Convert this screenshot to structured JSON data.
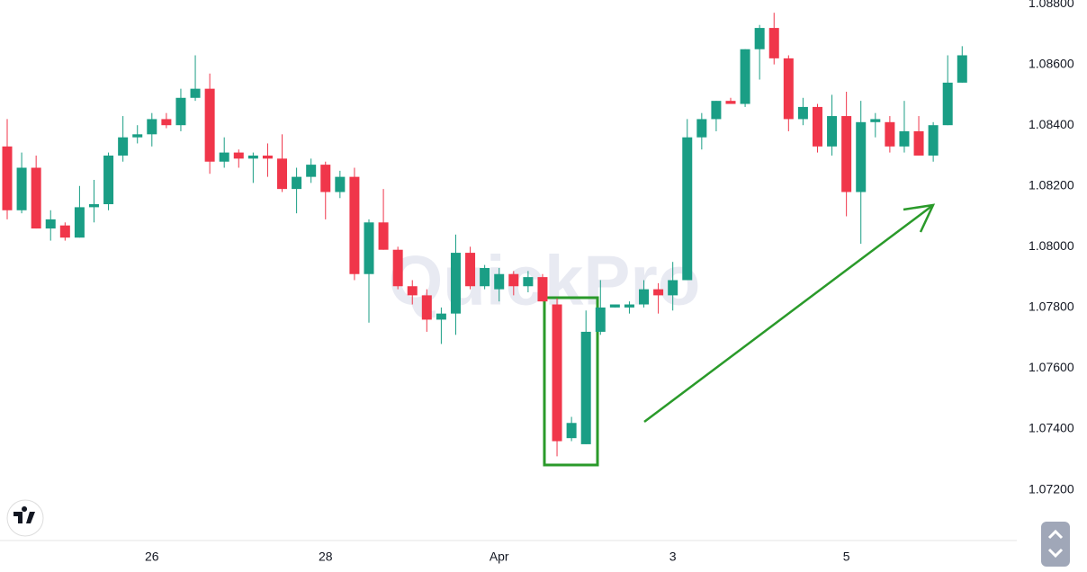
{
  "chart_data": {
    "type": "candlestick",
    "watermark": "QuickPro",
    "up_color": "#1a9e85",
    "down_color": "#f0364a",
    "categories": [
      null,
      null,
      null,
      null,
      null,
      null,
      null,
      null,
      null,
      null,
      "26",
      null,
      null,
      null,
      null,
      null,
      null,
      null,
      null,
      null,
      null,
      null,
      "28",
      null,
      null,
      null,
      null,
      null,
      null,
      null,
      null,
      null,
      null,
      null,
      "Apr",
      null,
      null,
      null,
      null,
      null,
      null,
      null,
      null,
      null,
      null,
      null,
      "3",
      null,
      null,
      null,
      null,
      null,
      null,
      null,
      null,
      null,
      null,
      null,
      "5",
      null,
      null,
      null,
      null,
      null,
      null,
      null,
      null
    ],
    "open": [
      1.0833,
      1.0812,
      1.0826,
      1.0806,
      1.0807,
      1.0803,
      1.0813,
      1.0814,
      1.083,
      1.0836,
      1.0837,
      1.0842,
      1.084,
      1.0849,
      1.0852,
      1.0828,
      1.0831,
      1.0829,
      1.083,
      1.0829,
      1.0819,
      1.0823,
      1.0827,
      1.0818,
      1.0823,
      1.0791,
      1.0808,
      1.0799,
      1.0787,
      1.0784,
      1.0776,
      1.0778,
      1.0798,
      1.0787,
      1.0786,
      1.0791,
      1.0787,
      1.079,
      1.0781,
      1.0737,
      1.0735,
      1.0772,
      1.078,
      1.078,
      1.0781,
      1.0786,
      1.0784,
      1.0789,
      1.0836,
      1.0842,
      1.0848,
      1.0847,
      1.0865,
      1.0872,
      1.0862,
      1.0842,
      1.0846,
      1.0833,
      1.0843,
      1.0818,
      1.0841,
      1.0841,
      1.0833,
      1.0838,
      1.083,
      1.084,
      1.0854
    ],
    "high": [
      1.0842,
      1.0831,
      1.083,
      1.0812,
      1.0808,
      1.082,
      1.0822,
      1.0831,
      1.0843,
      1.084,
      1.0844,
      1.0844,
      1.0852,
      1.0863,
      1.0857,
      1.0836,
      1.0832,
      1.0831,
      1.0834,
      1.0837,
      1.0826,
      1.0829,
      1.0828,
      1.0825,
      1.0826,
      1.0809,
      1.0819,
      1.08,
      1.0789,
      1.0786,
      1.078,
      1.0804,
      1.08,
      1.0794,
      1.0793,
      1.0792,
      1.0792,
      1.0791,
      1.0783,
      1.0744,
      1.0779,
      1.0789,
      1.0781,
      1.0782,
      1.0789,
      1.0788,
      1.0795,
      1.0842,
      1.0844,
      1.0848,
      1.0849,
      1.0865,
      1.0873,
      1.0877,
      1.0863,
      1.0849,
      1.0847,
      1.085,
      1.0851,
      1.0848,
      1.0844,
      1.0843,
      1.0848,
      1.0843,
      1.0841,
      1.0863,
      1.0866
    ],
    "low": [
      1.0809,
      1.0811,
      1.0806,
      1.0802,
      1.0802,
      1.0803,
      1.0808,
      1.0812,
      1.0828,
      1.0834,
      1.0833,
      1.0839,
      1.0838,
      1.0848,
      1.0824,
      1.0826,
      1.0826,
      1.0821,
      1.0823,
      1.0818,
      1.0811,
      1.0821,
      1.0809,
      1.0816,
      1.0789,
      1.0775,
      1.0799,
      1.0786,
      1.0781,
      1.0772,
      1.0768,
      1.0771,
      1.0786,
      1.0786,
      1.0782,
      1.0784,
      1.0785,
      1.0782,
      1.0731,
      1.0736,
      1.0735,
      1.0771,
      1.078,
      1.0778,
      1.078,
      1.0778,
      1.0779,
      1.0789,
      1.0832,
      1.0838,
      1.0847,
      1.0846,
      1.0855,
      1.086,
      1.0838,
      1.084,
      1.0831,
      1.083,
      1.081,
      1.0801,
      1.0836,
      1.0831,
      1.0831,
      1.083,
      1.0828,
      1.084,
      1.0854
    ],
    "close": [
      1.0812,
      1.0826,
      1.0806,
      1.0809,
      1.0803,
      1.0813,
      1.0814,
      1.083,
      1.0836,
      1.0837,
      1.0842,
      1.084,
      1.0849,
      1.0852,
      1.0828,
      1.0831,
      1.0829,
      1.083,
      1.0829,
      1.0819,
      1.0823,
      1.0827,
      1.0818,
      1.0823,
      1.0791,
      1.0808,
      1.0799,
      1.0787,
      1.0784,
      1.0776,
      1.0778,
      1.0798,
      1.0787,
      1.0793,
      1.0791,
      1.0787,
      1.079,
      1.0782,
      1.0736,
      1.0742,
      1.0772,
      1.078,
      1.0781,
      1.0781,
      1.0786,
      1.0784,
      1.0789,
      1.0836,
      1.0842,
      1.0848,
      1.0847,
      1.0865,
      1.0872,
      1.0862,
      1.0842,
      1.0846,
      1.0833,
      1.0843,
      1.0818,
      1.0841,
      1.0842,
      1.0833,
      1.0838,
      1.083,
      1.084,
      1.0854,
      1.0863
    ],
    "ylim": [
      1.07036,
      1.08812
    ],
    "yticks": [
      {
        "value": 1.088,
        "label": "1.08800"
      },
      {
        "value": 1.086,
        "label": "1.08600"
      },
      {
        "value": 1.084,
        "label": "1.08400"
      },
      {
        "value": 1.082,
        "label": "1.08200"
      },
      {
        "value": 1.08,
        "label": "1.08000"
      },
      {
        "value": 1.078,
        "label": "1.07800"
      },
      {
        "value": 1.076,
        "label": "1.07600"
      },
      {
        "value": 1.074,
        "label": "1.07400"
      },
      {
        "value": 1.072,
        "label": "1.07200"
      }
    ]
  }
}
